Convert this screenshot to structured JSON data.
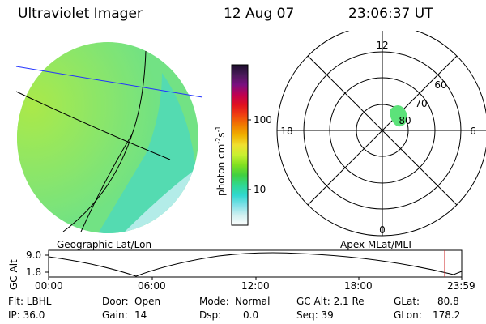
{
  "header": {
    "title": "Ultraviolet Imager",
    "date": "12 Aug 07",
    "time": "23:06:37 UT"
  },
  "colorbar": {
    "unit_text": "photon cm",
    "unit_exp1": "-2",
    "unit_mid": "s",
    "unit_exp2": "-1",
    "ticks": [
      "100",
      "10"
    ],
    "tick_values": [
      100,
      10
    ],
    "colors": [
      "#1a0d2a",
      "#4a1a5a",
      "#7a1080",
      "#c00050",
      "#e01020",
      "#f04010",
      "#f07a00",
      "#f0b000",
      "#f0e030",
      "#c8f030",
      "#80e020",
      "#40d040",
      "#30d890",
      "#30d8d0",
      "#80e0e8",
      "#d0f0f0",
      "#ffffff"
    ]
  },
  "left_panel": {
    "caption": "Geographic Lat/Lon",
    "disk_colors": {
      "base": "#66e07a",
      "dayside": "#a4e83a",
      "cyan": "#3ed6b8",
      "pale": "#bfeef0"
    },
    "line_colors": {
      "blue": "#2233ff",
      "black": "#000000"
    }
  },
  "right_panel": {
    "caption": "Apex MLat/MLT",
    "mlt_labels": {
      "top": "12",
      "bottom": "0",
      "left": "18",
      "right": "6"
    },
    "lat_labels": [
      "60",
      "70",
      "80"
    ],
    "patch_color": "#5ce27a"
  },
  "altitude_plot": {
    "axis_label": "GC Alt",
    "y_ticks": [
      "9.0",
      "1.8"
    ],
    "x_ticks": [
      "00:00",
      "06:00",
      "12:00",
      "18:00",
      "23:59"
    ],
    "marker_color": "#cc2222"
  },
  "info": {
    "col1": {
      "flt": "Flt: LBHL",
      "ip": "IP: 36.0"
    },
    "col2": {
      "door_label": "Door:",
      "door_value": "Open",
      "gain_label": "Gain:",
      "gain_value": "14"
    },
    "col3": {
      "mode_label": "Mode:",
      "mode_value": "Normal",
      "dsp_label": "Dsp:",
      "dsp_value": "0.0"
    },
    "col4": {
      "gcalt": "GC Alt: 2.1 Re",
      "seq": "Seq: 39"
    },
    "col5": {
      "glat_label": "GLat:",
      "glat_value": "80.8",
      "glon_label": "GLon:",
      "glon_value": "178.2"
    }
  }
}
